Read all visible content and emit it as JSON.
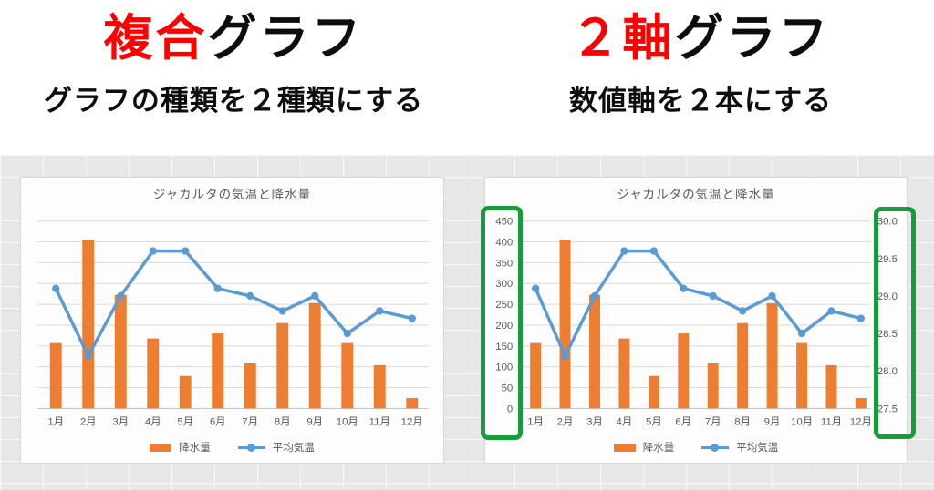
{
  "page": {
    "headings": {
      "left": {
        "highlight": "複合",
        "rest": "グラフ",
        "subtitle": "グラフの種類を２種類にする"
      },
      "right": {
        "highlight": "２軸",
        "rest": "グラフ",
        "subtitle": "数値軸を２本にする"
      }
    },
    "colors": {
      "highlight_red": "#ff0000",
      "heading_black": "#0d0d0d",
      "annotation_green": "#169c38",
      "sheet_gray": "#e7e7e7",
      "chart_text": "#595959",
      "gridline": "#d9d9d9",
      "axis_line": "#bfbfbf"
    }
  },
  "chart_data": [
    {
      "type": "combo-bar-line",
      "title": "ジャカルタの気温と降水量",
      "categories": [
        "1月",
        "2月",
        "3月",
        "4月",
        "5月",
        "6月",
        "7月",
        "8月",
        "9月",
        "10月",
        "11月",
        "12月"
      ],
      "series": [
        {
          "name": "降水量",
          "kind": "bar",
          "axis": "left",
          "color": "#ed7d31",
          "values": [
            157,
            405,
            273,
            168,
            78,
            180,
            108,
            205,
            253,
            157,
            104,
            25
          ]
        },
        {
          "name": "平均気温",
          "kind": "line",
          "axis": "right",
          "color": "#5b9bd5",
          "values": [
            29.1,
            28.2,
            29.0,
            29.6,
            29.6,
            29.1,
            29.0,
            28.8,
            29.0,
            28.5,
            28.8,
            28.7
          ]
        }
      ],
      "left_axis": {
        "visible": false,
        "min": 0,
        "max": 450,
        "step": 50,
        "ticks": []
      },
      "right_axis": {
        "visible": false,
        "min": 27.5,
        "max": 30,
        "step": 0.5,
        "ticks": []
      },
      "grid": true,
      "legend_position": "bottom"
    },
    {
      "type": "combo-bar-line",
      "title": "ジャカルタの気温と降水量",
      "categories": [
        "1月",
        "2月",
        "3月",
        "4月",
        "5月",
        "6月",
        "7月",
        "8月",
        "9月",
        "10月",
        "11月",
        "12月"
      ],
      "series": [
        {
          "name": "降水量",
          "kind": "bar",
          "axis": "left",
          "color": "#ed7d31",
          "values": [
            157,
            405,
            273,
            168,
            78,
            180,
            108,
            205,
            253,
            157,
            104,
            25
          ]
        },
        {
          "name": "平均気温",
          "kind": "line",
          "axis": "right",
          "color": "#5b9bd5",
          "values": [
            29.1,
            28.2,
            29.0,
            29.6,
            29.6,
            29.1,
            29.0,
            28.8,
            29.0,
            28.5,
            28.8,
            28.7
          ]
        }
      ],
      "left_axis": {
        "visible": true,
        "min": 0,
        "max": 450,
        "step": 50,
        "ticks": [
          "0",
          "50",
          "100",
          "150",
          "200",
          "250",
          "300",
          "350",
          "400",
          "450"
        ]
      },
      "right_axis": {
        "visible": true,
        "min": 27.5,
        "max": 30,
        "step": 0.5,
        "ticks": [
          "27.5",
          "28.0",
          "28.5",
          "29.0",
          "29.5",
          "30.0"
        ]
      },
      "grid": true,
      "legend_position": "bottom",
      "annotations": [
        {
          "shape": "rounded-rect",
          "target": "left-axis",
          "color": "#169c38"
        },
        {
          "shape": "rounded-rect",
          "target": "right-axis",
          "color": "#169c38"
        }
      ]
    }
  ]
}
